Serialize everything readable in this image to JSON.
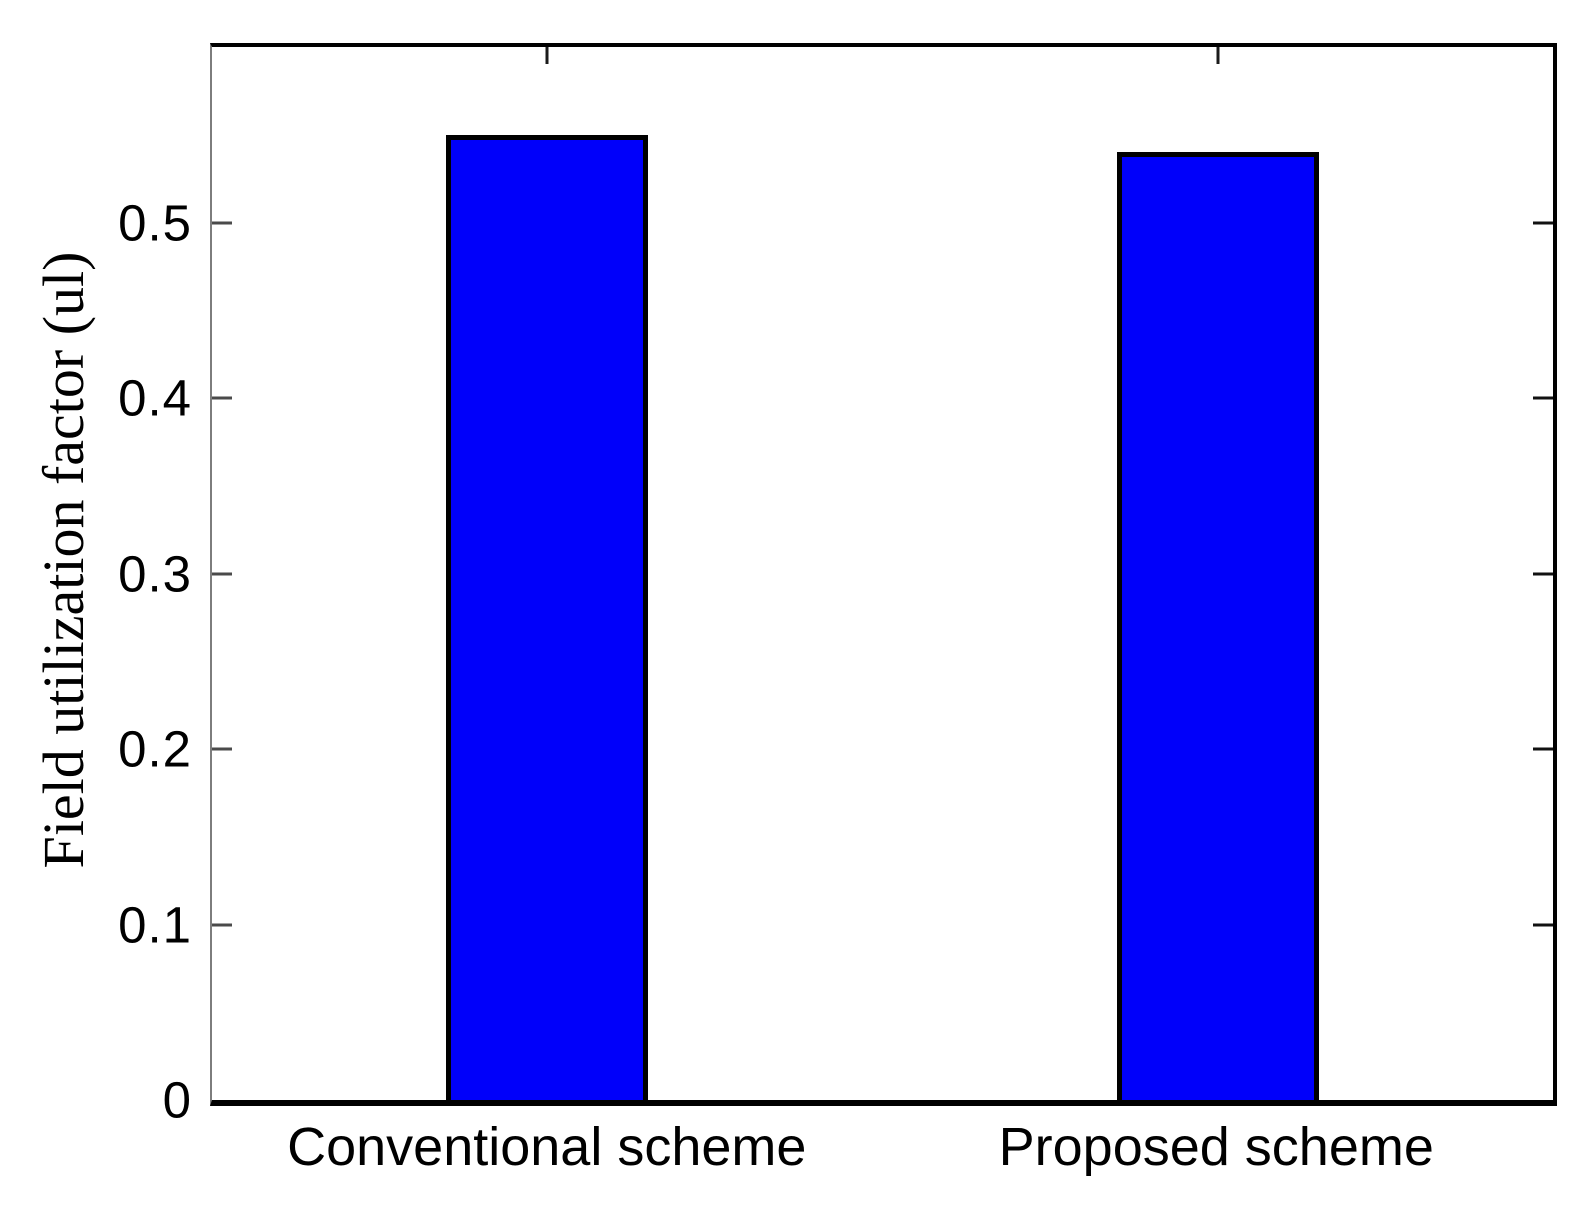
{
  "figure": {
    "background": "#ffffff"
  },
  "chart_data": {
    "type": "bar",
    "title": "",
    "xlabel": "",
    "ylabel": "Field utilization factor (ul)",
    "categories": [
      "Conventional scheme",
      "Proposed scheme"
    ],
    "values": [
      0.55,
      0.54
    ],
    "ylim": [
      0,
      0.6
    ],
    "yticks": [
      {
        "value": 0,
        "label": "0"
      },
      {
        "value": 0.1,
        "label": "0.1"
      },
      {
        "value": 0.2,
        "label": "0.2"
      },
      {
        "value": 0.3,
        "label": "0.3"
      },
      {
        "value": 0.4,
        "label": "0.4"
      },
      {
        "value": 0.5,
        "label": "0.5"
      }
    ],
    "grid": false,
    "legend": null,
    "bar_color": "#0000fa",
    "bar_edge_color": "#000000",
    "bar_width_frac": 0.151,
    "tick_style": "inward ticks on all four sides (boxed axes)"
  }
}
